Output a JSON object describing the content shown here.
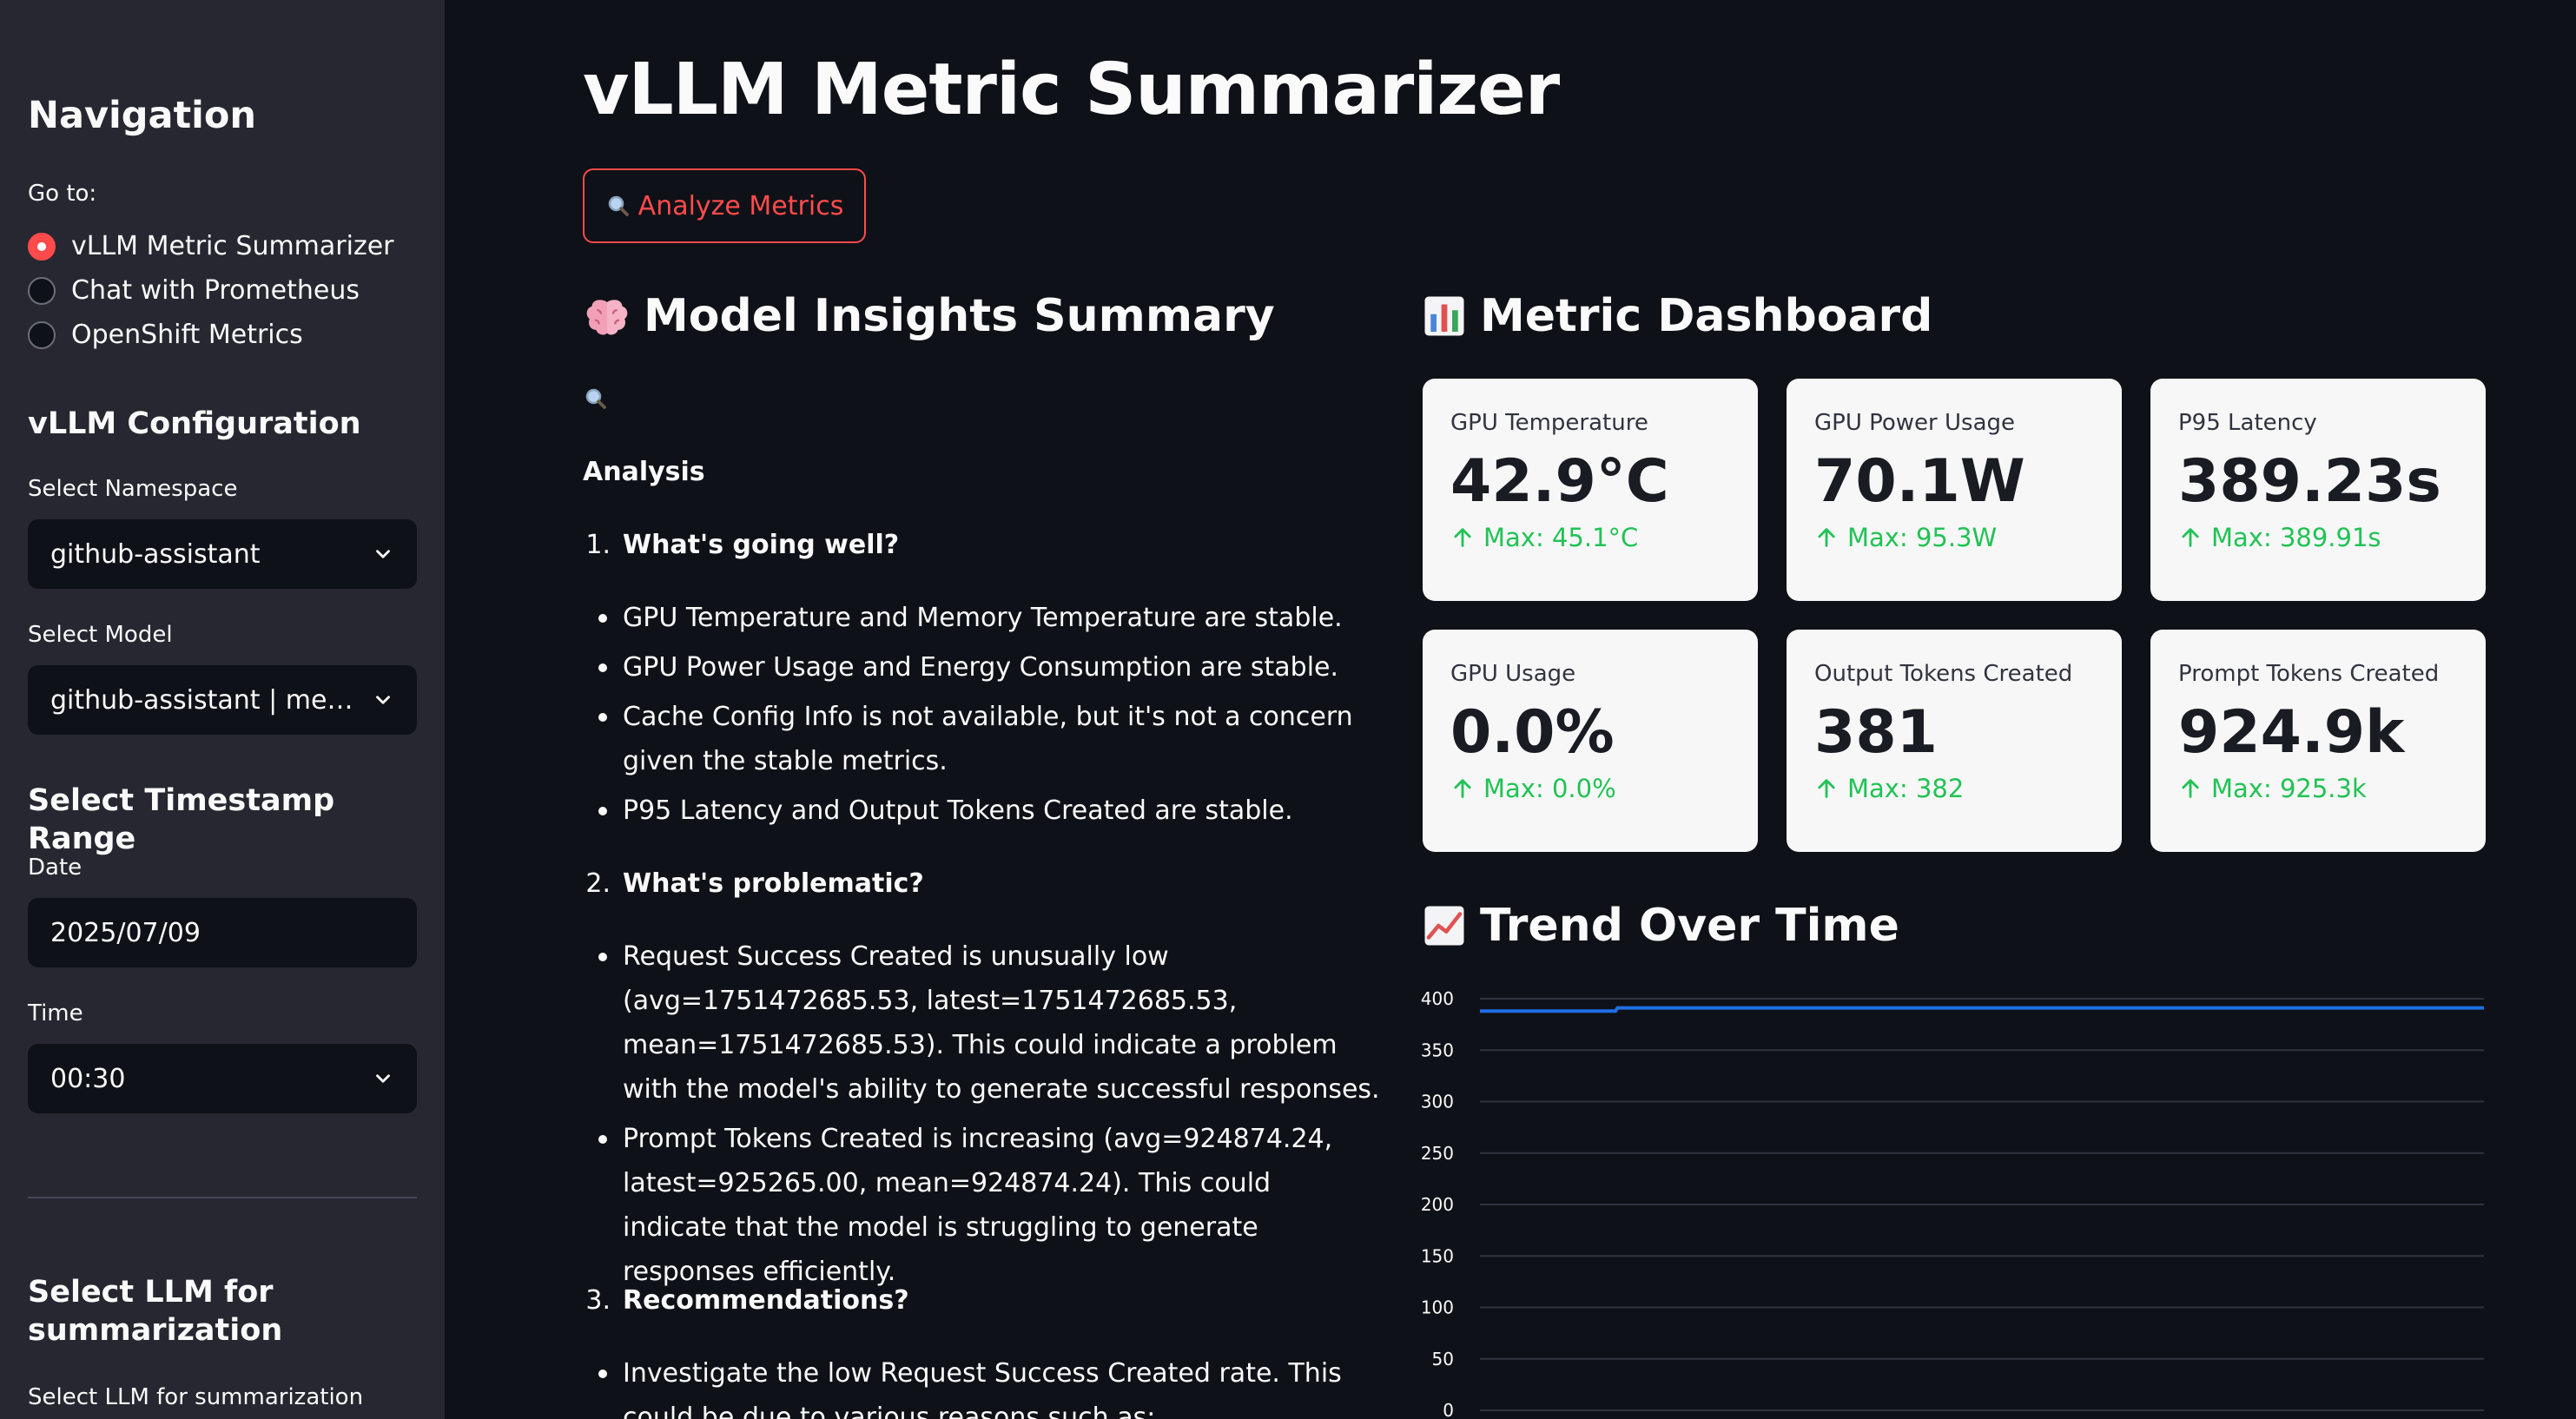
{
  "sidebar": {
    "nav_title": "Navigation",
    "goto_label": "Go to:",
    "nav_options": [
      {
        "label": "vLLM Metric Summarizer",
        "selected": true
      },
      {
        "label": "Chat with Prometheus",
        "selected": false
      },
      {
        "label": "OpenShift Metrics",
        "selected": false
      }
    ],
    "config_title": "vLLM Configuration",
    "namespace_label": "Select Namespace",
    "namespace_value": "github-assistant",
    "model_label": "Select Model",
    "model_value": "github-assistant | met…",
    "timestamp_title": "Select Timestamp Range",
    "date_label": "Date",
    "date_value": "2025/07/09",
    "time_label": "Time",
    "time_value": "00:30",
    "llm_title": "Select LLM for summarization",
    "llm_label": "Select LLM for summarization"
  },
  "main": {
    "title": "vLLM Metric Summarizer",
    "analyze_button": "Analyze Metrics",
    "analyze_icon": "magnifier-icon"
  },
  "insights": {
    "title": "Model Insights Summary",
    "title_icon": "brain-icon",
    "search_icon": "magnifier-icon",
    "analysis_heading": "Analysis",
    "sections": [
      {
        "number": "1.",
        "heading": "What's going well?",
        "bullets": [
          "GPU Temperature and Memory Temperature are stable.",
          "GPU Power Usage and Energy Consumption are stable.",
          "Cache Config Info is not available, but it's not a concern given the stable metrics.",
          "P95 Latency and Output Tokens Created are stable."
        ]
      },
      {
        "number": "2.",
        "heading": "What's problematic?",
        "bullets": [
          "Request Success Created is unusually low (avg=1751472685.53, latest=1751472685.53, mean=1751472685.53). This could indicate a problem with the model's ability to generate successful responses.",
          "Prompt Tokens Created is increasing (avg=924874.24, latest=925265.00, mean=924874.24). This could indicate that the model is struggling to generate responses efficiently."
        ]
      },
      {
        "number": "3.",
        "heading": "Recommendations?",
        "bullets": [
          "Investigate the low Request Success Created rate. This could be due to various reasons such as:"
        ]
      }
    ]
  },
  "dashboard": {
    "title": "Metric Dashboard",
    "title_icon": "bar-chart-icon",
    "cards": [
      {
        "label": "GPU Temperature",
        "value": "42.9°C",
        "delta": "Max: 45.1°C"
      },
      {
        "label": "GPU Power Usage",
        "value": "70.1W",
        "delta": "Max: 95.3W"
      },
      {
        "label": "P95 Latency",
        "value": "389.23s",
        "delta": "Max: 389.91s"
      },
      {
        "label": "GPU Usage",
        "value": "0.0%",
        "delta": "Max: 0.0%"
      },
      {
        "label": "Output Tokens Created",
        "value": "381",
        "delta": "Max: 382"
      },
      {
        "label": "Prompt Tokens Created",
        "value": "924.9k",
        "delta": "Max: 925.3k"
      }
    ],
    "accent_color": "#21c354"
  },
  "trend": {
    "title": "Trend Over Time",
    "title_icon": "line-chart-icon"
  },
  "chart_data": {
    "type": "line",
    "title": "",
    "xlabel": "",
    "ylabel": "",
    "ylim": [
      0,
      400
    ],
    "y_ticks": [
      0,
      50,
      100,
      150,
      200,
      250,
      300,
      350,
      400
    ],
    "grid": true,
    "series": [
      {
        "color": "#1f6fe5",
        "x": [
          0,
          0.135,
          0.137,
          1
        ],
        "values": [
          388,
          388,
          391,
          391
        ]
      }
    ]
  },
  "colors": {
    "background": "#0e1117",
    "sidebar": "#262730",
    "primary": "#ff4b4b"
  }
}
